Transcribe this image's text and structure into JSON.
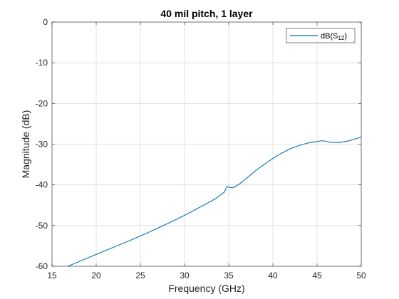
{
  "chart_data": {
    "type": "line",
    "title": "40 mil pitch, 1 layer",
    "xlabel": "Frequency (GHz)",
    "ylabel": "Magnitude (dB)",
    "xlim": [
      15,
      50
    ],
    "ylim": [
      -60,
      0
    ],
    "x_ticks": [
      15,
      20,
      25,
      30,
      35,
      40,
      45,
      50
    ],
    "y_ticks": [
      0,
      -10,
      -20,
      -30,
      -40,
      -50,
      -60
    ],
    "grid": true,
    "legend": {
      "placement": "top-right",
      "entries": [
        {
          "text_main": "dB(S",
          "text_sub": "12",
          "text_end": ")"
        }
      ]
    },
    "colors": {
      "series": "#0072BD",
      "grid": "#dcdcdc",
      "axis": "#262626"
    },
    "series": [
      {
        "x": [
          16.8,
          18,
          20,
          22,
          24,
          26,
          28,
          30,
          32,
          33.5,
          34.5,
          34.8,
          35.2,
          35.6,
          36.2,
          37,
          38,
          39,
          40,
          41,
          42,
          43,
          44,
          45,
          45.5,
          46,
          46.5,
          47.5,
          48.5,
          49.5,
          50
        ],
        "y": [
          -60,
          -58.9,
          -57.1,
          -55.3,
          -53.5,
          -51.6,
          -49.6,
          -47.5,
          -45.2,
          -43.4,
          -41.8,
          -40.4,
          -40.7,
          -40.6,
          -39.8,
          -38.4,
          -36.6,
          -35.0,
          -33.5,
          -32.2,
          -31.1,
          -30.3,
          -29.7,
          -29.35,
          -29.15,
          -29.3,
          -29.55,
          -29.6,
          -29.25,
          -28.6,
          -28.2
        ]
      }
    ]
  }
}
